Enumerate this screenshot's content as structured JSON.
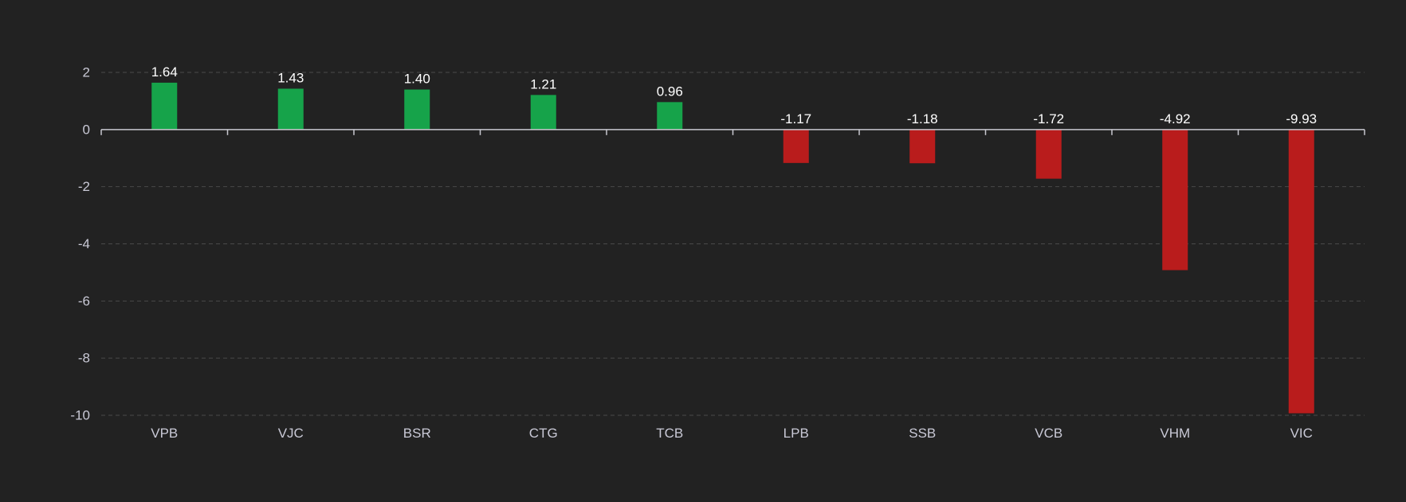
{
  "chart_data": {
    "type": "bar",
    "title": "",
    "xlabel": "",
    "ylabel": "",
    "categories": [
      "VPB",
      "VJC",
      "BSR",
      "CTG",
      "TCB",
      "LPB",
      "SSB",
      "VCB",
      "VHM",
      "VIC"
    ],
    "values": [
      1.64,
      1.43,
      1.4,
      1.21,
      0.96,
      -1.17,
      -1.18,
      -1.72,
      -4.92,
      -9.93
    ],
    "value_labels": [
      "1.64",
      "1.43",
      "1.40",
      "1.21",
      "0.96",
      "-1.17",
      "-1.18",
      "-1.72",
      "-4.92",
      "-9.93"
    ],
    "ylim": [
      -10,
      2
    ],
    "yticks": [
      2,
      0,
      -2,
      -4,
      -6,
      -8,
      -10
    ],
    "ytick_labels": [
      "2",
      "0",
      "-2",
      "-4",
      "-6",
      "-8",
      "-10"
    ],
    "grid": true,
    "legend": "none",
    "colors": {
      "background": "#222222",
      "positive": "#16a34a",
      "negative": "#b91c1c",
      "grid": "#4a4a4a",
      "axis": "#c8c8d0",
      "tick_text": "#c9c9d6",
      "label_text": "#ffffff"
    }
  }
}
